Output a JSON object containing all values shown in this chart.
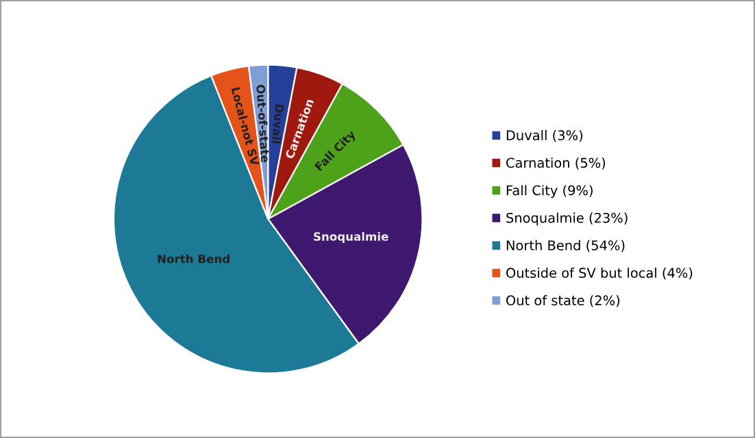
{
  "chart_data": {
    "type": "pie",
    "categories": [
      "Duvall (3%)",
      "Carnation (5%)",
      "Fall City (9%)",
      "Snoqualmie (23%)",
      "North Bend (54%)",
      "Outside of SV but local (4%)",
      "Out of state (2%)"
    ],
    "values": [
      3,
      5,
      9,
      23,
      54,
      4,
      2
    ],
    "colors": [
      "#24409a",
      "#a0190f",
      "#4ea21a",
      "#3f1870",
      "#1d7a96",
      "#e5531a",
      "#7f9ed6"
    ],
    "annotations": [
      {
        "text": "Duvall",
        "x": "Duvall (3%)"
      },
      {
        "text": "Carnation",
        "x": "Carnation (5%)"
      },
      {
        "text": "Fall City",
        "x": "Fall City (9%)"
      },
      {
        "text": "Snoqualmie",
        "x": "Snoqualmie (23%)"
      },
      {
        "text": "North Bend",
        "x": "North Bend (54%)"
      },
      {
        "text": "Local-not SV",
        "x": "Outside of SV but local (4%)"
      },
      {
        "text": "Out-of-state",
        "x": "Out of state (2%)"
      }
    ],
    "legend": "right"
  }
}
